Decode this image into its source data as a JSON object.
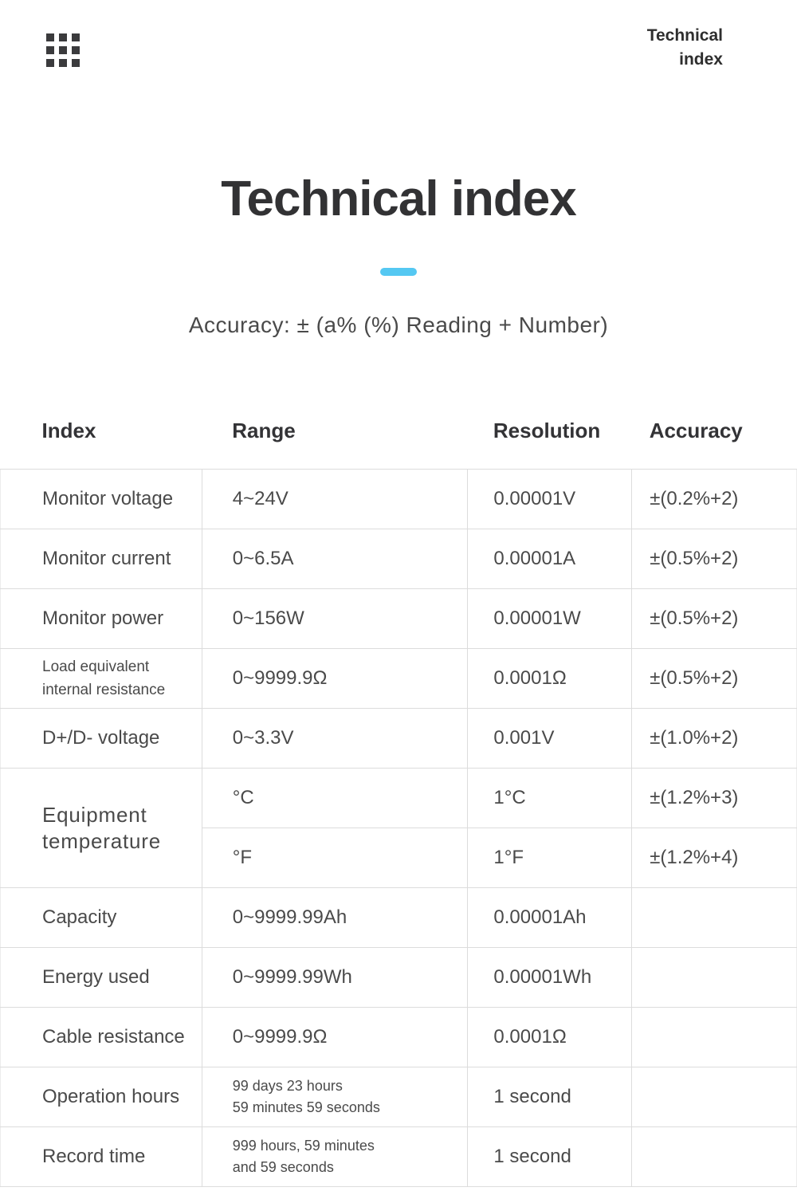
{
  "accent_color": "#55c8f2",
  "header": {
    "menu_icon": "grid-dots-icon",
    "corner": {
      "line1": "Technical",
      "line2": "index"
    }
  },
  "title": "Technical index",
  "accuracy_note": "Accuracy: ± (a% (%) Reading + Number)",
  "table": {
    "headers": [
      "Index",
      "Range",
      "Resolution",
      "Accuracy"
    ],
    "rows": [
      {
        "index": "Monitor voltage",
        "range": "4~24V",
        "resolution": "0.00001V",
        "accuracy": "±(0.2%+2)"
      },
      {
        "index": "Monitor current",
        "range": "0~6.5A",
        "resolution": "0.00001A",
        "accuracy": "±(0.5%+2)"
      },
      {
        "index": "Monitor power",
        "range": "0~156W",
        "resolution": "0.00001W",
        "accuracy": "±(0.5%+2)"
      },
      {
        "index": "Load equivalent internal resistance",
        "index_style": "small",
        "range": "0~9999.9Ω",
        "resolution": "0.0001Ω",
        "accuracy": "±(0.5%+2)"
      },
      {
        "index": "D+/D- voltage",
        "range": "0~3.3V",
        "resolution": "0.001V",
        "accuracy": "±(1.0%+2)"
      },
      {
        "index": "Equipment temperature",
        "index_style": "large",
        "index_rowspan": 2,
        "range": "°C",
        "resolution": "1°C",
        "accuracy": "±(1.2%+3)"
      },
      {
        "range": "°F",
        "resolution": "1°F",
        "accuracy": "±(1.2%+4)"
      },
      {
        "index": "Capacity",
        "range": "0~9999.99Ah",
        "resolution": "0.00001Ah",
        "accuracy": ""
      },
      {
        "index": "Energy used",
        "range": "0~9999.99Wh",
        "resolution": "0.00001Wh",
        "accuracy": ""
      },
      {
        "index": "Cable resistance",
        "range": "0~9999.9Ω",
        "resolution": "0.0001Ω",
        "accuracy": ""
      },
      {
        "index": "Operation hours",
        "range": "99 days 23 hours\n59 minutes 59 seconds",
        "range_style": "small",
        "resolution": "1 second",
        "accuracy": ""
      },
      {
        "index": "Record time",
        "range": "999 hours, 59 minutes\nand 59 seconds",
        "range_style": "small",
        "resolution": "1 second",
        "accuracy": ""
      }
    ]
  }
}
